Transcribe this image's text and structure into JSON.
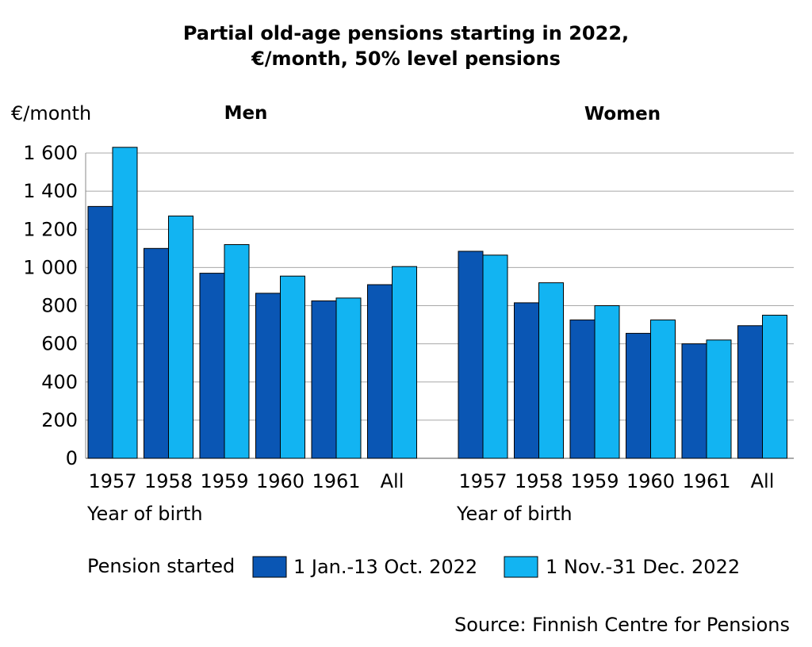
{
  "chart_data": {
    "type": "bar",
    "title": "Partial old-age pensions starting in 2022,",
    "subtitle": "€/month, 50% level pensions",
    "ylabel": "€/month",
    "xlabel": "Year of birth",
    "ylim": [
      0,
      1600
    ],
    "yticks": [
      "0",
      "200",
      "400",
      "600",
      "800",
      "1 000",
      "1 200",
      "1 400",
      "1 600"
    ],
    "grid": true,
    "categories": [
      "1957",
      "1958",
      "1959",
      "1960",
      "1961",
      "All"
    ],
    "panels": [
      {
        "name": "Men",
        "series": [
          {
            "name": "1 Jan.-13 Oct. 2022",
            "values": [
              1320,
              1100,
              970,
              865,
              825,
              910
            ]
          },
          {
            "name": "1 Nov.-31 Dec. 2022",
            "values": [
              1630,
              1270,
              1120,
              955,
              840,
              1005
            ]
          }
        ]
      },
      {
        "name": "Women",
        "series": [
          {
            "name": "1 Jan.-13 Oct. 2022",
            "values": [
              1085,
              815,
              725,
              655,
              600,
              695
            ]
          },
          {
            "name": "1 Nov.-31 Dec. 2022",
            "values": [
              1065,
              920,
              800,
              725,
              620,
              750
            ]
          }
        ]
      }
    ],
    "legend": {
      "title": "Pension started",
      "placement": "bottom",
      "items": [
        "1 Jan.-13 Oct. 2022",
        "1 Nov.-31 Dec. 2022"
      ]
    },
    "colors": [
      "#0a56b4",
      "#12b4f2"
    ],
    "source": "Source: Finnish Centre for Pensions"
  }
}
